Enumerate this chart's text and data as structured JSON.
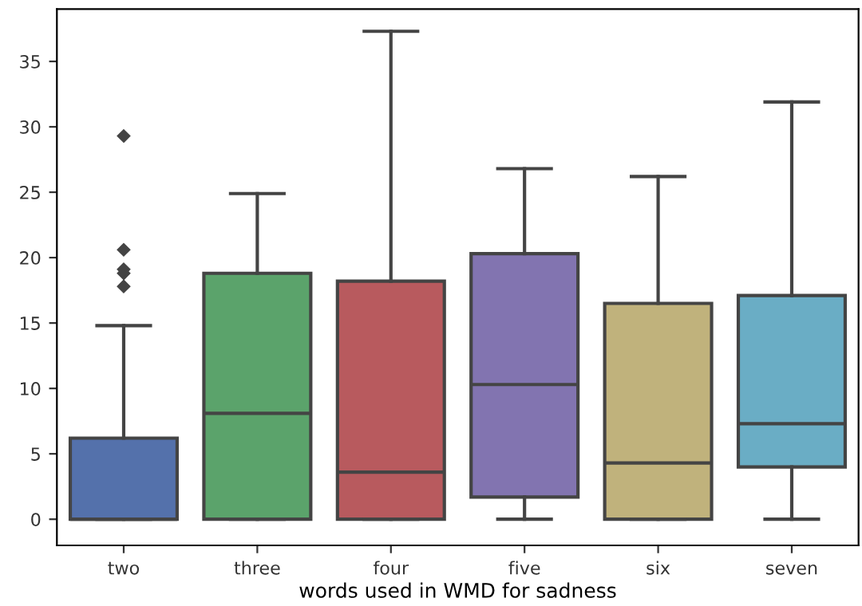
{
  "chart_data": {
    "type": "box",
    "xlabel": "words used in WMD for sadness",
    "categories": [
      "two",
      "three",
      "four",
      "five",
      "six",
      "seven"
    ],
    "colors": [
      "#5471ab",
      "#5ba36b",
      "#b85a5e",
      "#8274b0",
      "#c0b27c",
      "#6aadc5"
    ],
    "boxes": [
      {
        "low": 0,
        "q1": 0,
        "median": 0,
        "q3": 6.2,
        "high": 14.8,
        "outliers": [
          29.3,
          20.6,
          19.1,
          18.8,
          17.8
        ]
      },
      {
        "low": 0,
        "q1": 0,
        "median": 8.1,
        "q3": 18.8,
        "high": 24.9
      },
      {
        "low": 0,
        "q1": 0,
        "median": 3.6,
        "q3": 18.2,
        "high": 37.3
      },
      {
        "low": 0,
        "q1": 1.7,
        "median": 10.3,
        "q3": 20.3,
        "high": 26.8
      },
      {
        "low": 0,
        "q1": 0,
        "median": 4.3,
        "q3": 16.5,
        "high": 26.2
      },
      {
        "low": 0,
        "q1": 4.0,
        "median": 7.3,
        "q3": 17.1,
        "high": 31.9
      }
    ],
    "ylim": [
      -2,
      39
    ],
    "yticks": [
      0,
      5,
      10,
      15,
      20,
      25,
      30,
      35
    ],
    "grid": false,
    "marker": "diamond"
  }
}
